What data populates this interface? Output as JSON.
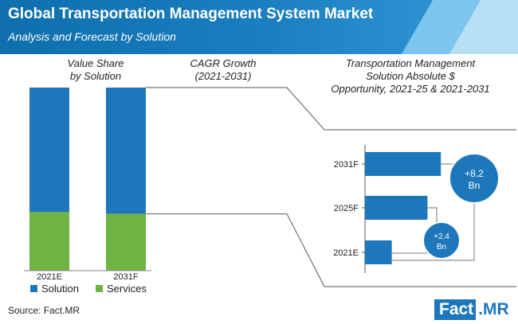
{
  "header": {
    "title": "Global Transportation Management System Market",
    "subtitle": "Analysis and Forecast by Solution"
  },
  "headings": {
    "value_share": [
      "Value Share",
      "by Solution"
    ],
    "cagr": [
      "CAGR Growth",
      "(2021-2031)"
    ],
    "opportunity": [
      "Transportation Management",
      "Solution Absolute $",
      "Opportunity, 2021-25 & 2021-2031"
    ]
  },
  "legend": {
    "solution": "Solution",
    "services": "Services"
  },
  "source": "Source: Fact.MR",
  "logo": {
    "fact": "Fact",
    "mr": ".MR"
  },
  "colors": {
    "solution": "#1e77ba",
    "services": "#6fb345",
    "header": "#1575b5"
  },
  "chart_data": [
    {
      "type": "bar",
      "stacked": true,
      "title": "Value Share by Solution",
      "categories": [
        "2021E",
        "2031F"
      ],
      "series": [
        {
          "name": "Solution",
          "values": [
            68,
            69
          ]
        },
        {
          "name": "Services",
          "values": [
            32,
            31
          ]
        }
      ],
      "ylim": [
        0,
        100
      ]
    },
    {
      "type": "bar",
      "orientation": "horizontal",
      "title": "Transportation Management Solution Absolute $ Opportunity, 2021-25 & 2021-2031",
      "categories": [
        "2031F",
        "2025F",
        "2021E"
      ],
      "values": [
        3.4,
        2.8,
        1.2
      ],
      "annotations": [
        {
          "text": [
            "+8.2",
            "Bn"
          ],
          "from": "2021E",
          "to": "2031F"
        },
        {
          "text": [
            "+2.4",
            "Bn"
          ],
          "from": "2021E",
          "to": "2025F"
        }
      ]
    }
  ]
}
